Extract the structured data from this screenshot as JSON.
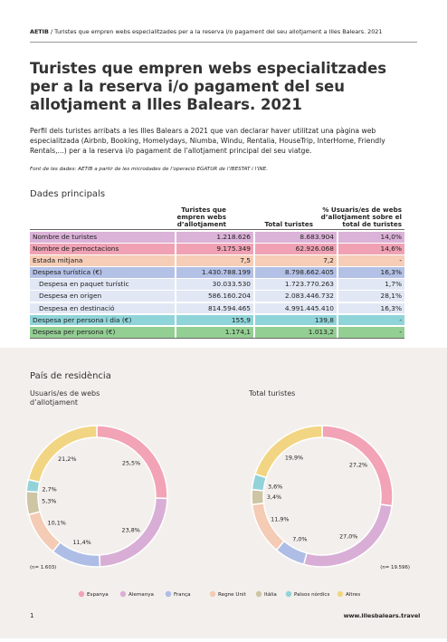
{
  "header": {
    "org": "AETIB",
    "text": "/ Turistes que empren webs especialitzades per a la reserva i/o pagament del seu allotjament a Illes Balears. 2021"
  },
  "title": "Turistes que empren webs especialitzades per a la reserva i/o pagament del seu allotjament a Illes Balears. 2021",
  "intro": "Perfil dels turistes arribats a les Illes Balears a 2021 que van declarar haver utilitzat una pàgina web especialitzada (Airbnb, Booking, Homelydays, Niumba, Windu, Rentalia, HouseTrip, InterHome, Friendly Rentals,...) per a la reserva i/o pagament de l’allotjament principal del seu viatge.",
  "source": "Font de les dades: AETIB a partir de les microdades de l’operació EGATUR de l’IBESTAT i l’INE.",
  "table": {
    "title": "Dades principals",
    "columns": [
      "Turistes que empren webs d’allotjament",
      "Total turistes",
      "% Usuaris/es de webs d’allotjament sobre el total de turistes"
    ],
    "rows": [
      {
        "label": "Nombre de turistes",
        "values": [
          "1.218.626",
          "8.683.904",
          "14,0%"
        ]
      },
      {
        "label": "Nombre de pernoctacions",
        "values": [
          "9.175.349",
          "62.926.068",
          "14,6%"
        ]
      },
      {
        "label": "Estada mitjana",
        "values": [
          "7,5",
          "7,2",
          "-"
        ]
      },
      {
        "label": "Despesa turística (€)",
        "values": [
          "1.430.788.199",
          "8.798.662.405",
          "16,3%"
        ]
      },
      {
        "label": "Despesa en paquet turístic",
        "values": [
          "30.033.530",
          "1.723.770.263",
          "1,7%"
        ]
      },
      {
        "label": "Despesa en origen",
        "values": [
          "586.160.204",
          "2.083.446.732",
          "28,1%"
        ]
      },
      {
        "label": "Despesa en destinació",
        "values": [
          "814.594.465",
          "4.991.445.410",
          "16,3%"
        ]
      },
      {
        "label": "Despesa per persona i dia (€)",
        "values": [
          "155,9",
          "139,8",
          "-"
        ]
      },
      {
        "label": "Despesa per persona (€)",
        "values": [
          "1.174,1",
          "1.013,2",
          "-"
        ]
      }
    ]
  },
  "section_title": "País de residència",
  "chart_data": [
    {
      "type": "pie",
      "title": "Usuaris/es de webs d’allotjament",
      "note": "(n= 1.603)",
      "categories": [
        "Espanya",
        "Alemanya",
        "França",
        "Regne Unit",
        "Itàlia",
        "Països nòrdics",
        "Altres"
      ],
      "colors": [
        "#f2a3b6",
        "#d9aed6",
        "#aebde6",
        "#f4cbb4",
        "#cdc5a3",
        "#92d3d9",
        "#f2d583"
      ],
      "values": [
        25.5,
        23.8,
        11.4,
        10.1,
        5.3,
        2.7,
        21.2
      ],
      "value_labels": [
        "25,5%",
        "23,8%",
        "11,4%",
        "10,1%",
        "5,3%",
        "2,7%",
        "21,2%"
      ]
    },
    {
      "type": "pie",
      "title": "Total turistes",
      "note": "(n= 19.596)",
      "categories": [
        "Espanya",
        "Alemanya",
        "França",
        "Regne Unit",
        "Itàlia",
        "Països nòrdics",
        "Altres"
      ],
      "colors": [
        "#f2a3b6",
        "#d9aed6",
        "#aebde6",
        "#f4cbb4",
        "#cdc5a3",
        "#92d3d9",
        "#f2d583"
      ],
      "values": [
        27.2,
        27.0,
        7.0,
        11.9,
        3.4,
        3.6,
        19.9
      ],
      "value_labels": [
        "27,2%",
        "27,0%",
        "7,0%",
        "11,9%",
        "3,4%",
        "3,6%",
        "19,9%"
      ]
    }
  ],
  "footer": {
    "page": "1",
    "url": "www.illesbalears.travel"
  }
}
